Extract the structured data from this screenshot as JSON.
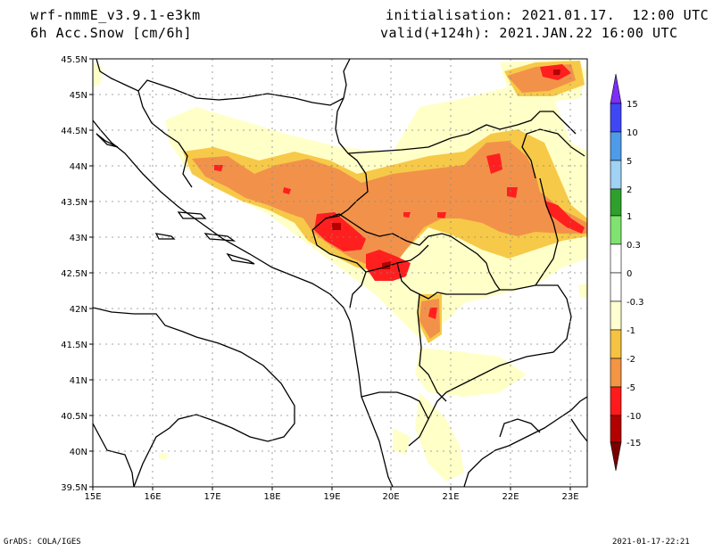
{
  "header": {
    "model": "wrf-nmmE_v3.9.1-e3km",
    "field": "6h Acc.Snow [cm/6h]",
    "init": "initialisation: 2021.01.17.  12:00 UTC",
    "valid": "valid(+124h): 2021.JAN.22 16:00 UTC"
  },
  "footer": {
    "left": "GrADS: COLA/IGES",
    "right": "2021-01-17-22:21"
  },
  "axes": {
    "lon_range": [
      15,
      23.3
    ],
    "lat_range": [
      39.5,
      45.5
    ],
    "lon_ticks": [
      "15E",
      "16E",
      "17E",
      "18E",
      "19E",
      "20E",
      "21E",
      "22E",
      "23E"
    ],
    "lat_ticks": [
      "45.5N",
      "45N",
      "44.5N",
      "44N",
      "43.5N",
      "43N",
      "42.5N",
      "42N",
      "41.5N",
      "41N",
      "40.5N",
      "40N",
      "39.5N"
    ]
  },
  "legend": {
    "levels": [
      "15",
      "10",
      "5",
      "2",
      "1",
      "0.3",
      "0",
      "-0.3",
      "-1",
      "-2",
      "-5",
      "-10",
      "-15"
    ],
    "colors": [
      "#7b2ff7",
      "#3f47f5",
      "#4f9be8",
      "#9fd2f5",
      "#2ea02c",
      "#7ee36f",
      "#ffffff",
      "#ffffd0",
      "#fff2a8",
      "#f5c242",
      "#f39544",
      "#ff1b1b",
      "#b30000",
      "#7a0000"
    ]
  },
  "snow_colors": {
    "light": "#ffffc8",
    "medium": "#f7c948",
    "heavy": "#f2924a",
    "very_heavy": "#ff1f1f",
    "extreme": "#b40000"
  }
}
